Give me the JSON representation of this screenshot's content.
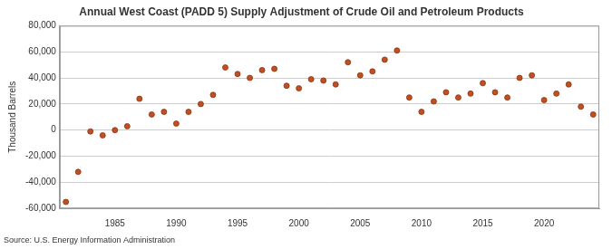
{
  "chart_data": {
    "type": "scatter",
    "title": "Annual West Coast (PADD 5) Supply Adjustment of Crude Oil and Petroleum Products",
    "y_label": "Thousand Barrels",
    "source": "Source: U.S. Energy Information Administration",
    "x": [
      1981,
      1982,
      1983,
      1984,
      1985,
      1986,
      1987,
      1988,
      1989,
      1990,
      1991,
      1992,
      1993,
      1994,
      1995,
      1996,
      1997,
      1998,
      1999,
      2000,
      2001,
      2002,
      2003,
      2004,
      2005,
      2006,
      2007,
      2008,
      2009,
      2010,
      2011,
      2012,
      2013,
      2014,
      2015,
      2016,
      2017,
      2018,
      2019,
      2020,
      2021,
      2022,
      2023,
      2024
    ],
    "values": [
      -55000,
      -32000,
      -1000,
      -4000,
      0,
      3000,
      24000,
      12000,
      14000,
      5000,
      14000,
      20000,
      27000,
      48000,
      43000,
      40000,
      46000,
      47000,
      34000,
      32000,
      39000,
      38000,
      35000,
      52000,
      42000,
      45000,
      54000,
      61000,
      25000,
      14000,
      22000,
      29000,
      25000,
      28000,
      36000,
      29000,
      25000,
      40000,
      42000,
      23000,
      28000,
      35000,
      18000,
      12000
    ],
    "color": "#c0501f",
    "marker": "circle",
    "xlim": [
      1980.5,
      2024.5
    ],
    "xticks": [
      1985,
      1990,
      1995,
      2000,
      2005,
      2010,
      2015,
      2020
    ],
    "ylim": [
      -60000,
      80000
    ],
    "yticks": [
      {
        "value": -60000,
        "label": "-60,000"
      },
      {
        "value": -40000,
        "label": "-40,000"
      },
      {
        "value": -20000,
        "label": "-20,000"
      },
      0,
      {
        "value": 20000,
        "label": "20,000"
      },
      {
        "value": 40000,
        "label": "40,000"
      },
      {
        "value": 60000,
        "label": "60,000"
      },
      {
        "value": 80000,
        "label": "80,000"
      }
    ],
    "grid": true
  }
}
